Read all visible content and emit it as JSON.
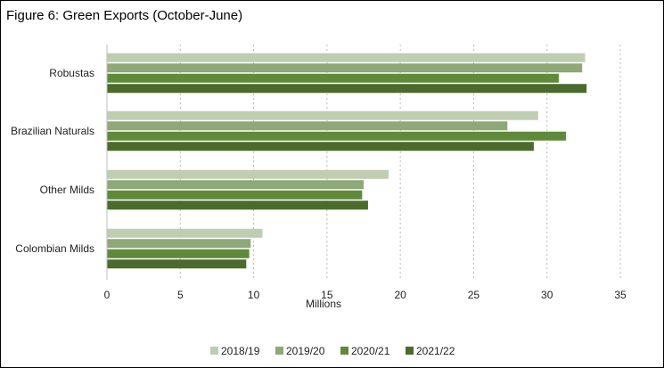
{
  "chart_data": {
    "type": "bar",
    "orientation": "horizontal",
    "title": "Figure 6: Green Exports (October-June)",
    "xlabel": "Millions",
    "ylabel": "",
    "xlim": [
      0,
      35
    ],
    "x_ticks": [
      0,
      5,
      10,
      15,
      20,
      25,
      30,
      35
    ],
    "grid": "vertical dashed",
    "legend_position": "bottom",
    "categories": [
      "Robustas",
      "Brazilian Naturals",
      "Other Milds",
      "Colombian Milds"
    ],
    "series": [
      {
        "name": "2018/19",
        "color": "#bfcdb1",
        "values": [
          32.6,
          29.4,
          19.2,
          10.6
        ]
      },
      {
        "name": "2019/20",
        "color": "#8fa877",
        "values": [
          32.4,
          27.3,
          17.5,
          9.8
        ]
      },
      {
        "name": "2020/21",
        "color": "#5e8a3a",
        "values": [
          30.8,
          31.3,
          17.4,
          9.7
        ]
      },
      {
        "name": "2021/22",
        "color": "#4a6b2c",
        "values": [
          32.7,
          29.1,
          17.8,
          9.5
        ]
      }
    ]
  }
}
